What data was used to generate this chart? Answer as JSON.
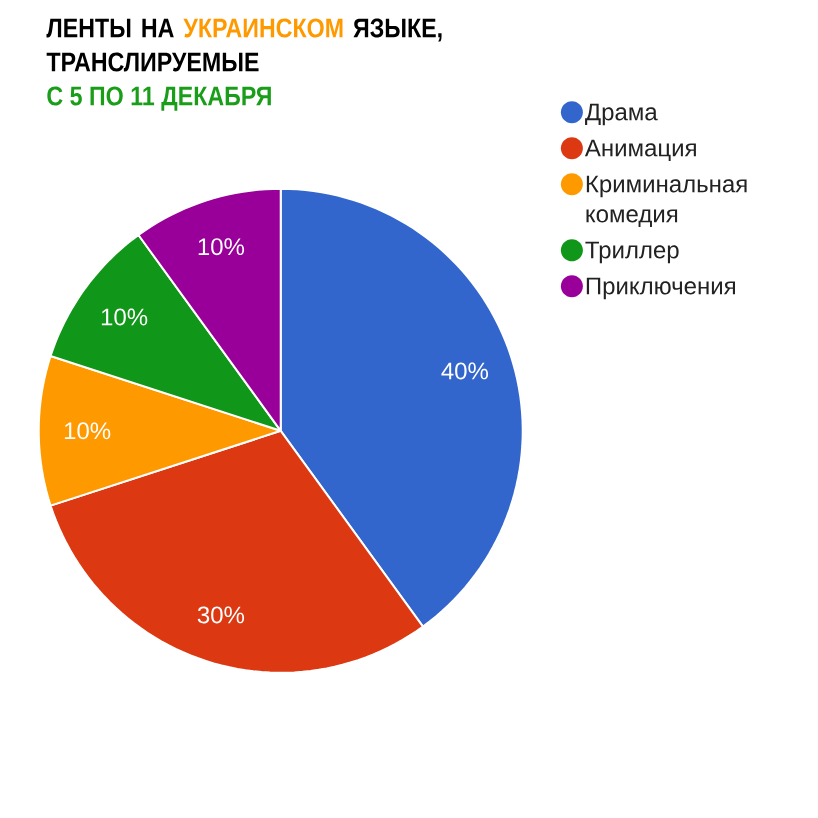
{
  "chart_data": {
    "type": "pie",
    "title": "ЛЕНТЫ НА **УКРАИНСКОМ** ЯЗЫКЕ, ТРАНСЛИРУЕМЫЕ",
    "subtitle": "С 5 ПО 11 ДЕКАБРЯ",
    "categories": [
      "Драма",
      "Анимация",
      "Криминальная комедия",
      "Триллер",
      "Приключения"
    ],
    "values": [
      40,
      30,
      10,
      10,
      10
    ],
    "colors": [
      "#3366cc",
      "#dc3912",
      "#ff9900",
      "#109618",
      "#990099"
    ],
    "value_labels": [
      "40%",
      "30%",
      "10%",
      "10%",
      "10%"
    ],
    "legend": "right"
  }
}
